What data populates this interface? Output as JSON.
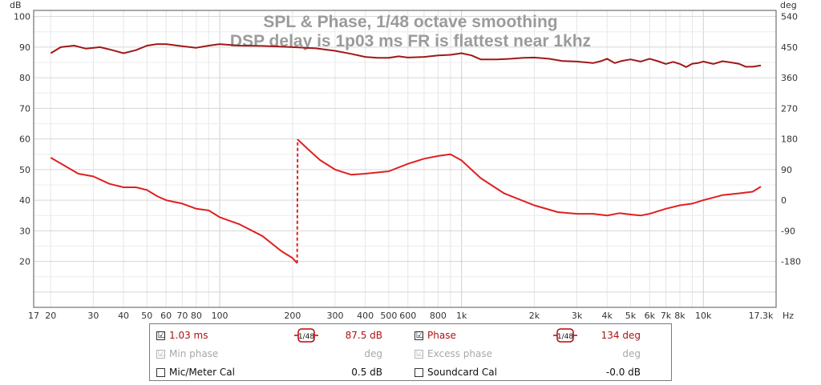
{
  "chart_data": {
    "type": "line",
    "title": "SPL & Phase, 1/48 octave smoothing",
    "subtitle": "DSP delay is 1p03 ms  FR is flattest near 1khz",
    "x_scale": "log",
    "xlabel_unit": "Hz",
    "xlim": [
      17,
      20000
    ],
    "x_ticks": [
      {
        "v": 17,
        "t": "17"
      },
      {
        "v": 20,
        "t": "20"
      },
      {
        "v": 30,
        "t": "30"
      },
      {
        "v": 40,
        "t": "40"
      },
      {
        "v": 50,
        "t": "50"
      },
      {
        "v": 60,
        "t": "60"
      },
      {
        "v": 70,
        "t": "70"
      },
      {
        "v": 80,
        "t": "80"
      },
      {
        "v": 100,
        "t": "100"
      },
      {
        "v": 200,
        "t": "200"
      },
      {
        "v": 300,
        "t": "300"
      },
      {
        "v": 400,
        "t": "400"
      },
      {
        "v": 500,
        "t": "500"
      },
      {
        "v": 600,
        "t": "600"
      },
      {
        "v": 800,
        "t": "800"
      },
      {
        "v": 1000,
        "t": "1k"
      },
      {
        "v": 2000,
        "t": "2k"
      },
      {
        "v": 3000,
        "t": "3k"
      },
      {
        "v": 4000,
        "t": "4k"
      },
      {
        "v": 5000,
        "t": "5k"
      },
      {
        "v": 6000,
        "t": "6k"
      },
      {
        "v": 7000,
        "t": "7k"
      },
      {
        "v": 8000,
        "t": "8k"
      },
      {
        "v": 10000,
        "t": "10k"
      },
      {
        "v": 17300,
        "t": "17.3k"
      }
    ],
    "left_axis": {
      "label": "dB",
      "ylim": [
        5,
        102
      ],
      "ticks": [
        20,
        30,
        40,
        50,
        60,
        70,
        80,
        90,
        100
      ]
    },
    "right_axis": {
      "label": "deg",
      "ticks": [
        -180,
        -90,
        0,
        90,
        180,
        270,
        360,
        450,
        540
      ],
      "map": "dB = 40 + deg/9"
    },
    "grid": true,
    "series": [
      {
        "name": "1.03 ms",
        "axis": "left",
        "color": "#a01818",
        "x": [
          20,
          22,
          25,
          28,
          32,
          36,
          40,
          45,
          50,
          55,
          60,
          70,
          80,
          90,
          100,
          120,
          150,
          200,
          250,
          300,
          350,
          400,
          450,
          500,
          550,
          600,
          700,
          800,
          900,
          1000,
          1100,
          1200,
          1400,
          1600,
          1800,
          2000,
          2300,
          2600,
          3000,
          3500,
          3800,
          4000,
          4300,
          4600,
          5000,
          5500,
          6000,
          6500,
          7000,
          7500,
          8000,
          8500,
          9000,
          9500,
          10000,
          11000,
          12000,
          13000,
          14000,
          15000,
          16000,
          17300
        ],
        "y": [
          88,
          90,
          90.5,
          89.5,
          90,
          89,
          88,
          89,
          90.5,
          91,
          91,
          90.3,
          89.8,
          90.5,
          91,
          90.5,
          90.4,
          90,
          89.6,
          88.8,
          87.8,
          86.8,
          86.5,
          86.5,
          87,
          86.6,
          86.8,
          87.3,
          87.5,
          88,
          87.3,
          86,
          86,
          86.2,
          86.5,
          86.6,
          86.2,
          85.5,
          85.3,
          84.8,
          85.5,
          86.2,
          84.8,
          85.5,
          86,
          85.3,
          86.2,
          85.4,
          84.5,
          85.2,
          84.5,
          83.5,
          84.6,
          84.8,
          85.3,
          84.5,
          85.4,
          85,
          84.6,
          83.6,
          83.6,
          84
        ]
      },
      {
        "name": "Phase",
        "axis": "right",
        "color": "#e02020",
        "x": [
          20,
          23,
          26,
          30,
          35,
          40,
          45,
          50,
          55,
          60,
          70,
          80,
          90,
          100,
          120,
          150,
          180,
          200,
          209,
          210,
          230,
          260,
          300,
          350,
          400,
          500,
          600,
          700,
          800,
          900,
          1000,
          1200,
          1500,
          2000,
          2500,
          3000,
          3500,
          4000,
          4500,
          5000,
          5500,
          6000,
          7000,
          8000,
          9000,
          10000,
          12000,
          14000,
          16000,
          17300
        ],
        "y": [
          125,
          100,
          78,
          70,
          48,
          38,
          38,
          30,
          12,
          0,
          -10,
          -25,
          -30,
          -50,
          -70,
          -105,
          -150,
          -170,
          -185,
          179,
          152,
          118,
          90,
          75,
          78,
          85,
          107,
          122,
          130,
          135,
          117,
          65,
          20,
          -15,
          -35,
          -40,
          -40,
          -45,
          -38,
          -42,
          -45,
          -40,
          -25,
          -15,
          -10,
          0,
          15,
          20,
          25,
          40
        ]
      }
    ]
  },
  "legend": {
    "row1": {
      "left_label": "1.03 ms",
      "left_smoothing": "1/48",
      "left_value": "87.5 dB",
      "left_checked": "☑",
      "right_label": "Phase",
      "right_smoothing": "1/48",
      "right_value": "134 deg",
      "right_checked": "☑"
    },
    "row2": {
      "left_label": "Min phase",
      "left_value": "deg",
      "left_checked": "☑",
      "right_label": "Excess phase",
      "right_value": "deg",
      "right_checked": "☑"
    },
    "row3": {
      "left_label": "Mic/Meter Cal",
      "left_value": "0.5 dB",
      "right_label": "Soundcard Cal",
      "right_value": "-0.0 dB"
    }
  },
  "colors": {
    "spl": "#a01818",
    "phase": "#e02020",
    "grid": "#dcdcdc",
    "smoothing_box": "#c00000"
  }
}
